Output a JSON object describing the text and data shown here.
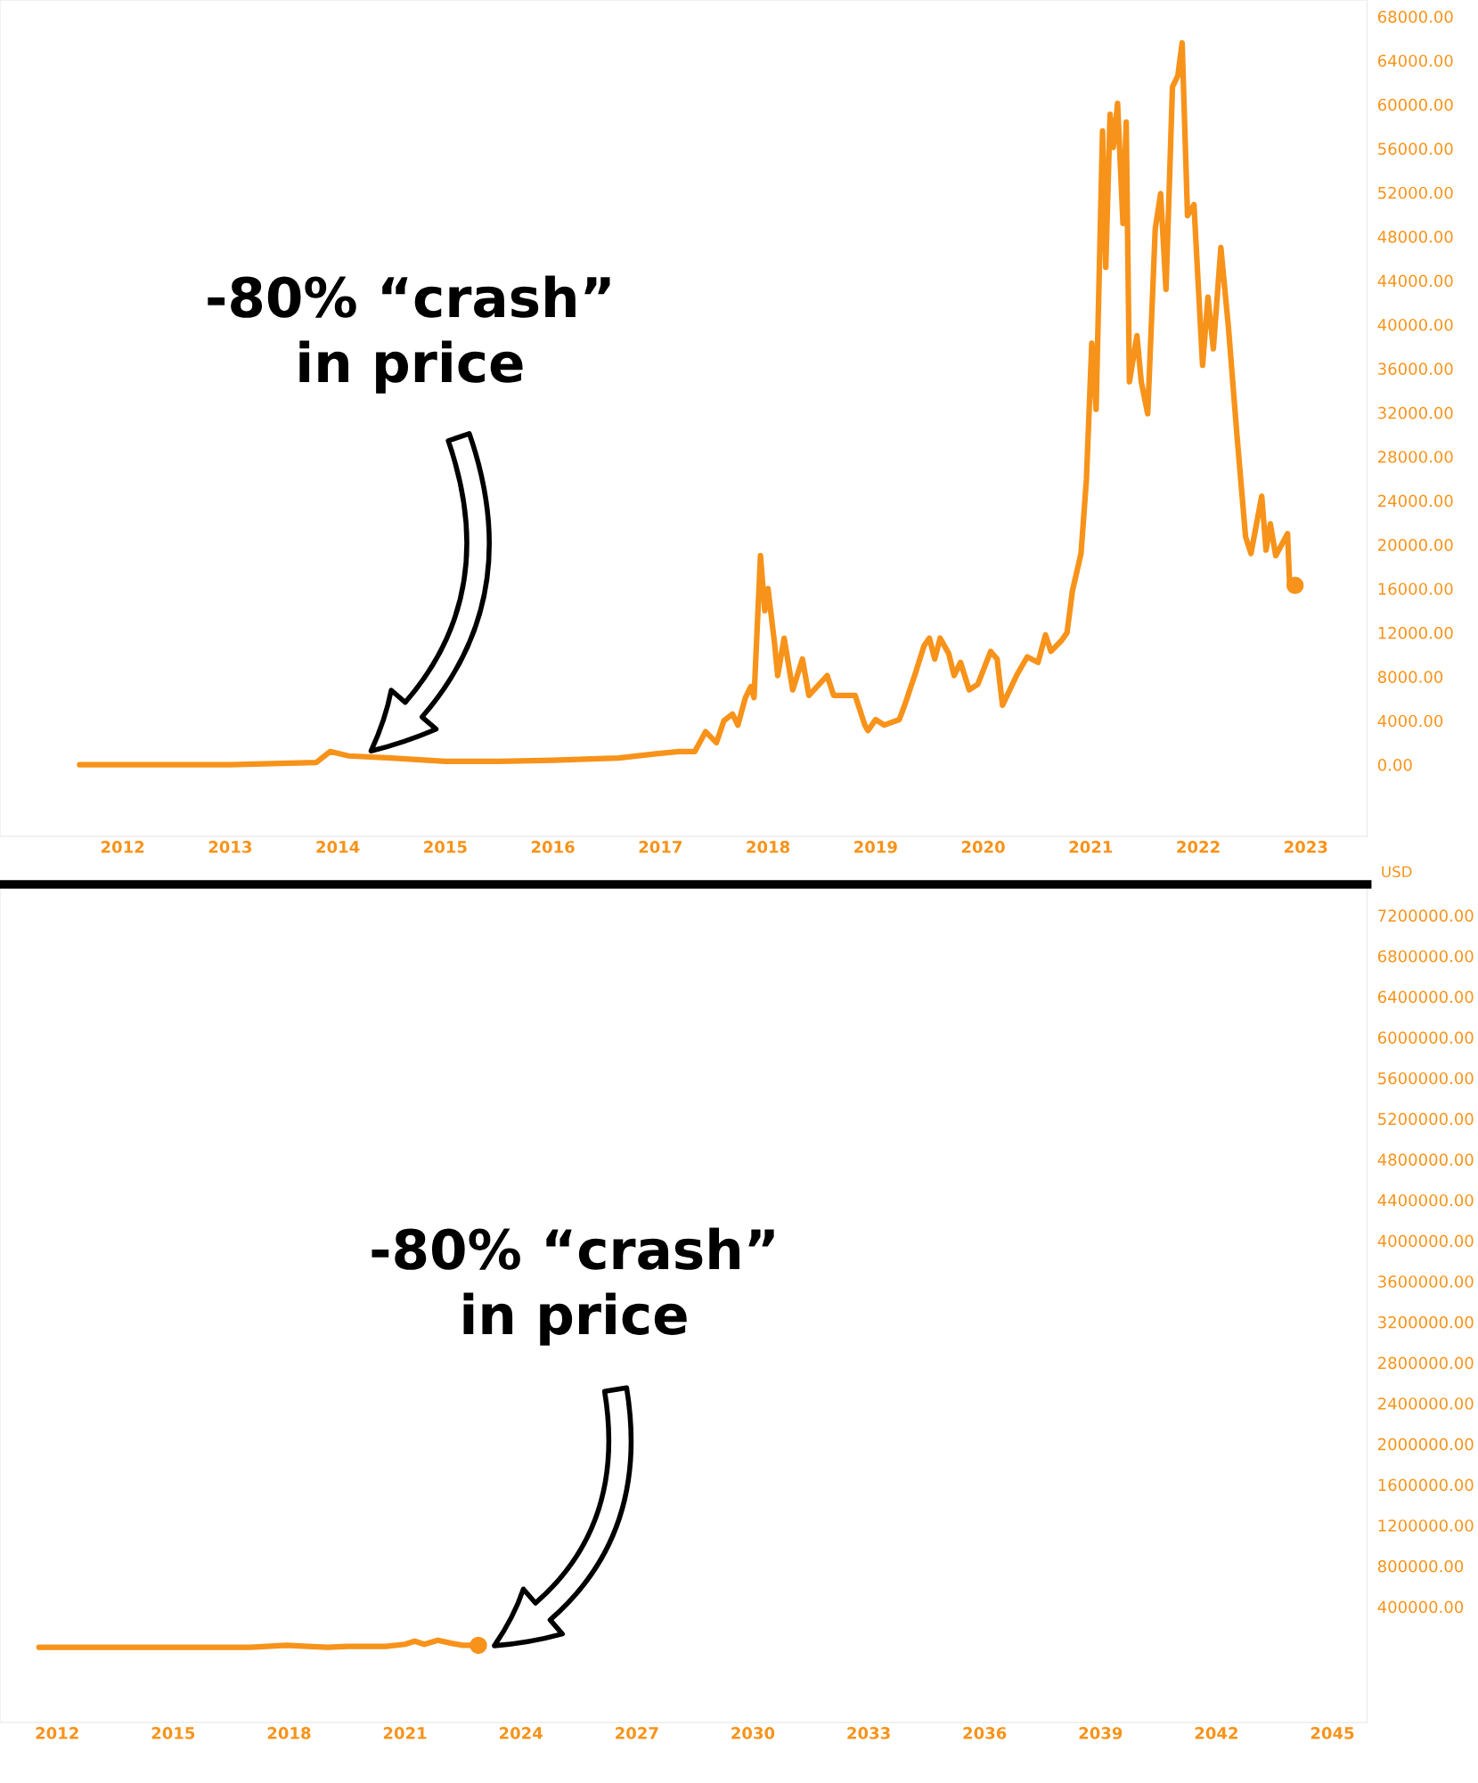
{
  "chart_data": [
    {
      "type": "line",
      "x": [
        2011.6,
        2013.0,
        2013.8,
        2013.93,
        2014.1,
        2014.5,
        2015.0,
        2015.5,
        2016.0,
        2016.3,
        2016.61,
        2016.96,
        2017.17,
        2017.32,
        2017.42,
        2017.52,
        2017.59,
        2017.67,
        2017.72,
        2017.79,
        2017.84,
        2017.87,
        2017.93,
        2017.97,
        2018.0,
        2018.06,
        2018.09,
        2018.15,
        2018.23,
        2018.32,
        2018.38,
        2018.55,
        2018.61,
        2018.81,
        2018.9,
        2018.93,
        2019.0,
        2019.08,
        2019.22,
        2019.27,
        2019.37,
        2019.45,
        2019.5,
        2019.55,
        2019.6,
        2019.68,
        2019.73,
        2019.79,
        2019.87,
        2019.95,
        2020.07,
        2020.13,
        2020.18,
        2020.31,
        2020.41,
        2020.51,
        2020.58,
        2020.63,
        2020.73,
        2020.78,
        2020.83,
        2020.91,
        2020.96,
        2021.01,
        2021.05,
        2021.11,
        2021.14,
        2021.18,
        2021.21,
        2021.25,
        2021.3,
        2021.33,
        2021.36,
        2021.43,
        2021.47,
        2021.53,
        2021.6,
        2021.65,
        2021.7,
        2021.76,
        2021.81,
        2021.85,
        2021.9,
        2021.96,
        2022.04,
        2022.09,
        2022.14,
        2022.21,
        2022.28,
        2022.36,
        2022.44,
        2022.49,
        2022.59,
        2022.63,
        2022.67,
        2022.72,
        2022.83,
        2022.85,
        2022.9
      ],
      "series": [
        {
          "color": "#f7931a",
          "values": [
            0,
            0,
            200,
            1200,
            800,
            600,
            300,
            300,
            400,
            500,
            600,
            1000,
            1200,
            1200,
            3000,
            2000,
            4000,
            4600,
            3600,
            6100,
            7100,
            6100,
            19000,
            14000,
            16000,
            11100,
            8100,
            11500,
            6800,
            9600,
            6300,
            8100,
            6300,
            6300,
            3600,
            3100,
            4100,
            3600,
            4100,
            5400,
            8300,
            10800,
            11500,
            9600,
            11500,
            10100,
            8100,
            9300,
            6800,
            7300,
            10300,
            9600,
            5400,
            8100,
            9800,
            9300,
            11800,
            10300,
            11300,
            12000,
            15800,
            19200,
            25900,
            38300,
            32300,
            57600,
            45200,
            59100,
            56100,
            60100,
            49200,
            58400,
            34800,
            39000,
            34800,
            31900,
            48700,
            51900,
            43200,
            61600,
            62600,
            65600,
            49900,
            50900,
            36300,
            42500,
            37800,
            47000,
            39800,
            29900,
            20700,
            19200,
            24400,
            19500,
            21900,
            19000,
            21000,
            16300,
            16300
          ]
        }
      ],
      "xlim": [
        2010.86,
        2023.57
      ],
      "ylim": [
        -6500,
        69500
      ],
      "xticks": [
        2012,
        2013,
        2014,
        2015,
        2016,
        2017,
        2018,
        2019,
        2020,
        2021,
        2022,
        2023
      ],
      "yticks": [
        {
          "value": 0,
          "label": "0.00"
        },
        {
          "value": 4000,
          "label": "4000.00"
        },
        {
          "value": 8000,
          "label": "8000.00"
        },
        {
          "value": 12000,
          "label": "12000.00"
        },
        {
          "value": 16000,
          "label": "16000.00"
        },
        {
          "value": 20000,
          "label": "20000.00"
        },
        {
          "value": 24000,
          "label": "24000.00"
        },
        {
          "value": 28000,
          "label": "28000.00"
        },
        {
          "value": 32000,
          "label": "32000.00"
        },
        {
          "value": 36000,
          "label": "36000.00"
        },
        {
          "value": 40000,
          "label": "40000.00"
        },
        {
          "value": 44000,
          "label": "44000.00"
        },
        {
          "value": 48000,
          "label": "48000.00"
        },
        {
          "value": 52000,
          "label": "52000.00"
        },
        {
          "value": 56000,
          "label": "56000.00"
        },
        {
          "value": 60000,
          "label": "60000.00"
        },
        {
          "value": 64000,
          "label": "64000.00"
        },
        {
          "value": 68000,
          "label": "68000.00"
        }
      ],
      "annotations": [
        "-80% “crash”\nin price"
      ],
      "grid": false
    },
    {
      "type": "line",
      "x": [
        2011.53,
        2014.0,
        2016.0,
        2017.0,
        2017.93,
        2018.5,
        2019.0,
        2019.5,
        2020.0,
        2020.5,
        2021.0,
        2021.25,
        2021.5,
        2021.85,
        2022.2,
        2022.5,
        2022.9
      ],
      "series": [
        {
          "color": "#f7931a",
          "values": [
            0,
            0,
            0,
            0,
            20000,
            10000,
            0,
            10000,
            10000,
            10000,
            30000,
            60000,
            30000,
            70000,
            40000,
            20000,
            20000
          ]
        }
      ],
      "xlim": [
        2010.52,
        2045.9
      ],
      "ylim": [
        -738000,
        7505000
      ],
      "xticks": [
        2012,
        2015,
        2018,
        2021,
        2024,
        2027,
        2030,
        2033,
        2036,
        2039,
        2042,
        2045
      ],
      "yticks": [
        {
          "value": 400000,
          "label": "400000.00"
        },
        {
          "value": 800000,
          "label": "800000.00"
        },
        {
          "value": 1200000,
          "label": "1200000.00"
        },
        {
          "value": 1600000,
          "label": "1600000.00"
        },
        {
          "value": 2000000,
          "label": "2000000.00"
        },
        {
          "value": 2400000,
          "label": "2400000.00"
        },
        {
          "value": 2800000,
          "label": "2800000.00"
        },
        {
          "value": 3200000,
          "label": "3200000.00"
        },
        {
          "value": 3600000,
          "label": "3600000.00"
        },
        {
          "value": 4000000,
          "label": "4000000.00"
        },
        {
          "value": 4400000,
          "label": "4400000.00"
        },
        {
          "value": 4800000,
          "label": "4800000.00"
        },
        {
          "value": 5200000,
          "label": "5200000.00"
        },
        {
          "value": 5600000,
          "label": "5600000.00"
        },
        {
          "value": 6000000,
          "label": "6000000.00"
        },
        {
          "value": 6400000,
          "label": "6400000.00"
        },
        {
          "value": 6800000,
          "label": "6800000.00"
        },
        {
          "value": 7200000,
          "label": "7200000.00"
        }
      ],
      "ylabel": "USD",
      "annotations": [
        "-80% “crash”\nin price"
      ],
      "grid": false
    }
  ]
}
